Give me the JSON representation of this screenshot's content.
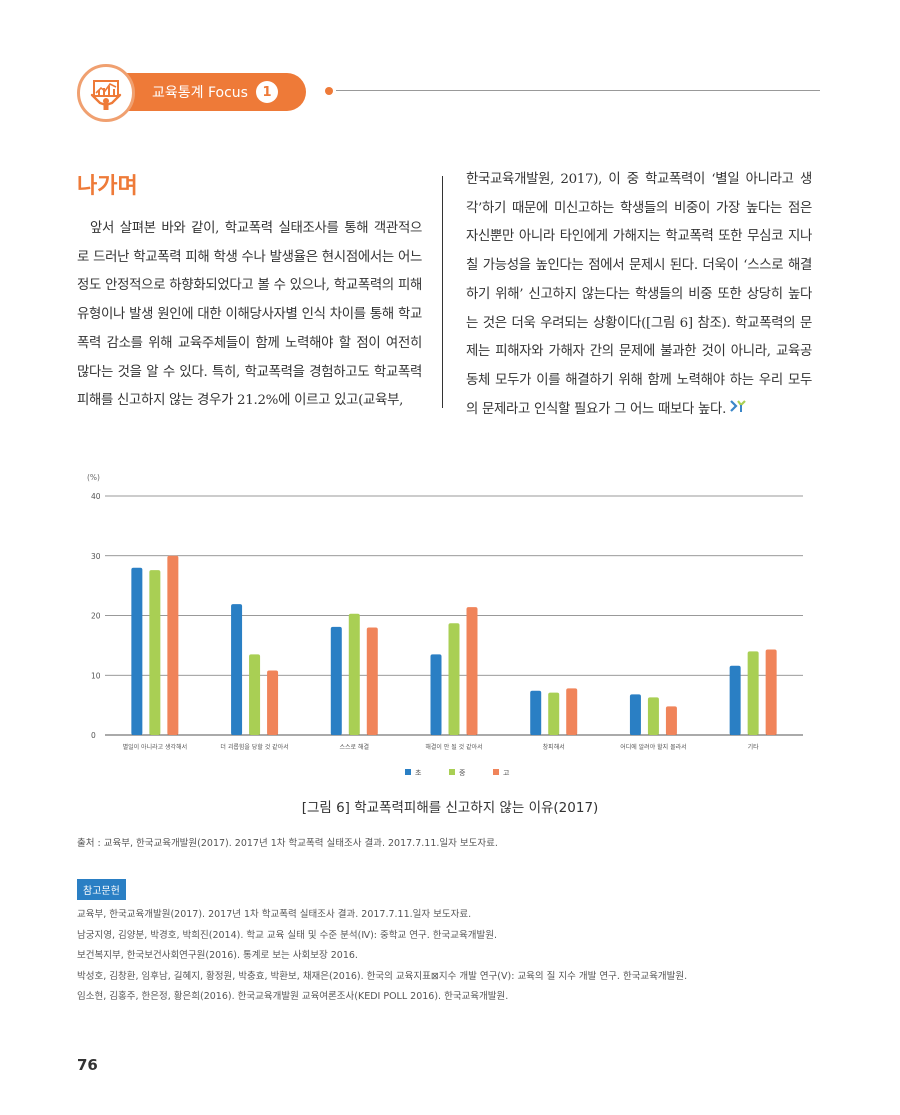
{
  "header": {
    "label": "교육통계 Focus",
    "number": "1",
    "icon": "chart-person-icon",
    "accent_color": "#ee7a38"
  },
  "section": {
    "title": "나가며"
  },
  "column_left": {
    "text": "앞서 살펴본 바와 같이, 학교폭력 실태조사를 통해 객관적으로 드러난 학교폭력 피해 학생 수나 발생율은 현시점에서는 어느 정도 안정적으로 하향화되었다고 볼 수 있으나, 학교폭력의 피해 유형이나 발생 원인에 대한 이해당사자별 인식 차이를 통해 학교폭력 감소를 위해 교육주체들이 함께 노력해야 할 점이 여전히 많다는 것을 알 수 있다. 특히, 학교폭력을 경험하고도 학교폭력 피해를 신고하지 않는 경우가 21.2%에 이르고 있고(교육부,"
  },
  "column_right": {
    "text": "한국교육개발원, 2017), 이 중 학교폭력이 ‘별일 아니라고 생각’하기 때문에 미신고하는 학생들의 비중이 가장 높다는 점은 자신뿐만 아니라 타인에게 가해지는 학교폭력 또한 무심코 지나칠 가능성을 높인다는 점에서 문제시 된다. 더욱이 ‘스스로 해결하기 위해’ 신고하지 않는다는 학생들의 비중 또한 상당히 높다는 것은 더욱 우려되는 상황이다([그림 6] 참조). 학교폭력의 문제는 피해자와 가해자 간의 문제에 불과한 것이 아니라, 교육공동체 모두가 이를 해결하기 위해 함께 노력해야 하는 우리 모두의 문제라고 인식할 필요가 그 어느 때보다 높다.",
    "end_icon": "kedi-logo-icon"
  },
  "chart_data": {
    "type": "bar",
    "title": "[그림 6] 학교폭력피해를 신고하지 않는 이유(2017)",
    "ylabel": "(%)",
    "ylim": [
      0,
      40
    ],
    "yticks": [
      "0",
      "10",
      "20",
      "30",
      "40"
    ],
    "categories": [
      "별일이 아니라고 생각해서",
      "더 괴롭힘을 당할 것 같아서",
      "스스로 해결",
      "해결이 안 될 것 같아서",
      "창피해서",
      "어디에 알려야 할지 몰라서",
      "기타"
    ],
    "series": [
      {
        "name": "초",
        "color": "#2a7fc4",
        "values": [
          28.0,
          21.9,
          18.1,
          13.5,
          7.4,
          6.8,
          11.6
        ]
      },
      {
        "name": "중",
        "color": "#a9cf54",
        "values": [
          27.6,
          13.5,
          20.3,
          18.7,
          7.1,
          6.3,
          14.0
        ]
      },
      {
        "name": "고",
        "color": "#f0845a",
        "values": [
          30.0,
          10.8,
          18.0,
          21.4,
          7.8,
          4.8,
          14.3
        ]
      }
    ],
    "grid": true,
    "legend_position": "bottom"
  },
  "source": {
    "text": "출처 : 교육부, 한국교육개발원(2017). 2017년 1차 학교폭력 실태조사 결과. 2017.7.11.일자 보도자료."
  },
  "references": {
    "label": "참고문헌",
    "items": [
      "교육부, 한국교육개발원(2017). 2017년 1차 학교폭력 실태조사 결과. 2017.7.11.일자 보도자료.",
      "남궁지영, 김양분, 박경호, 박희진(2014). 학교 교육 실태 및 수준 분석(Ⅳ): 중학교 연구. 한국교육개발원.",
      "보건복지부, 한국보건사회연구원(2016). 통계로 보는 사회보장 2016.",
      "박성호, 김창환, 임후남, 길혜지, 황정원, 박충효, 박환보, 채재은(2016). 한국의 교육지표⊠지수 개발 연구(Ⅴ): 교육의 질 지수 개발 연구. 한국교육개발원.",
      "임소현, 김홍주, 한은정, 황은희(2016). 한국교육개발원 교육여론조사(KEDI POLL 2016). 한국교육개발원."
    ]
  },
  "page_number": "76"
}
